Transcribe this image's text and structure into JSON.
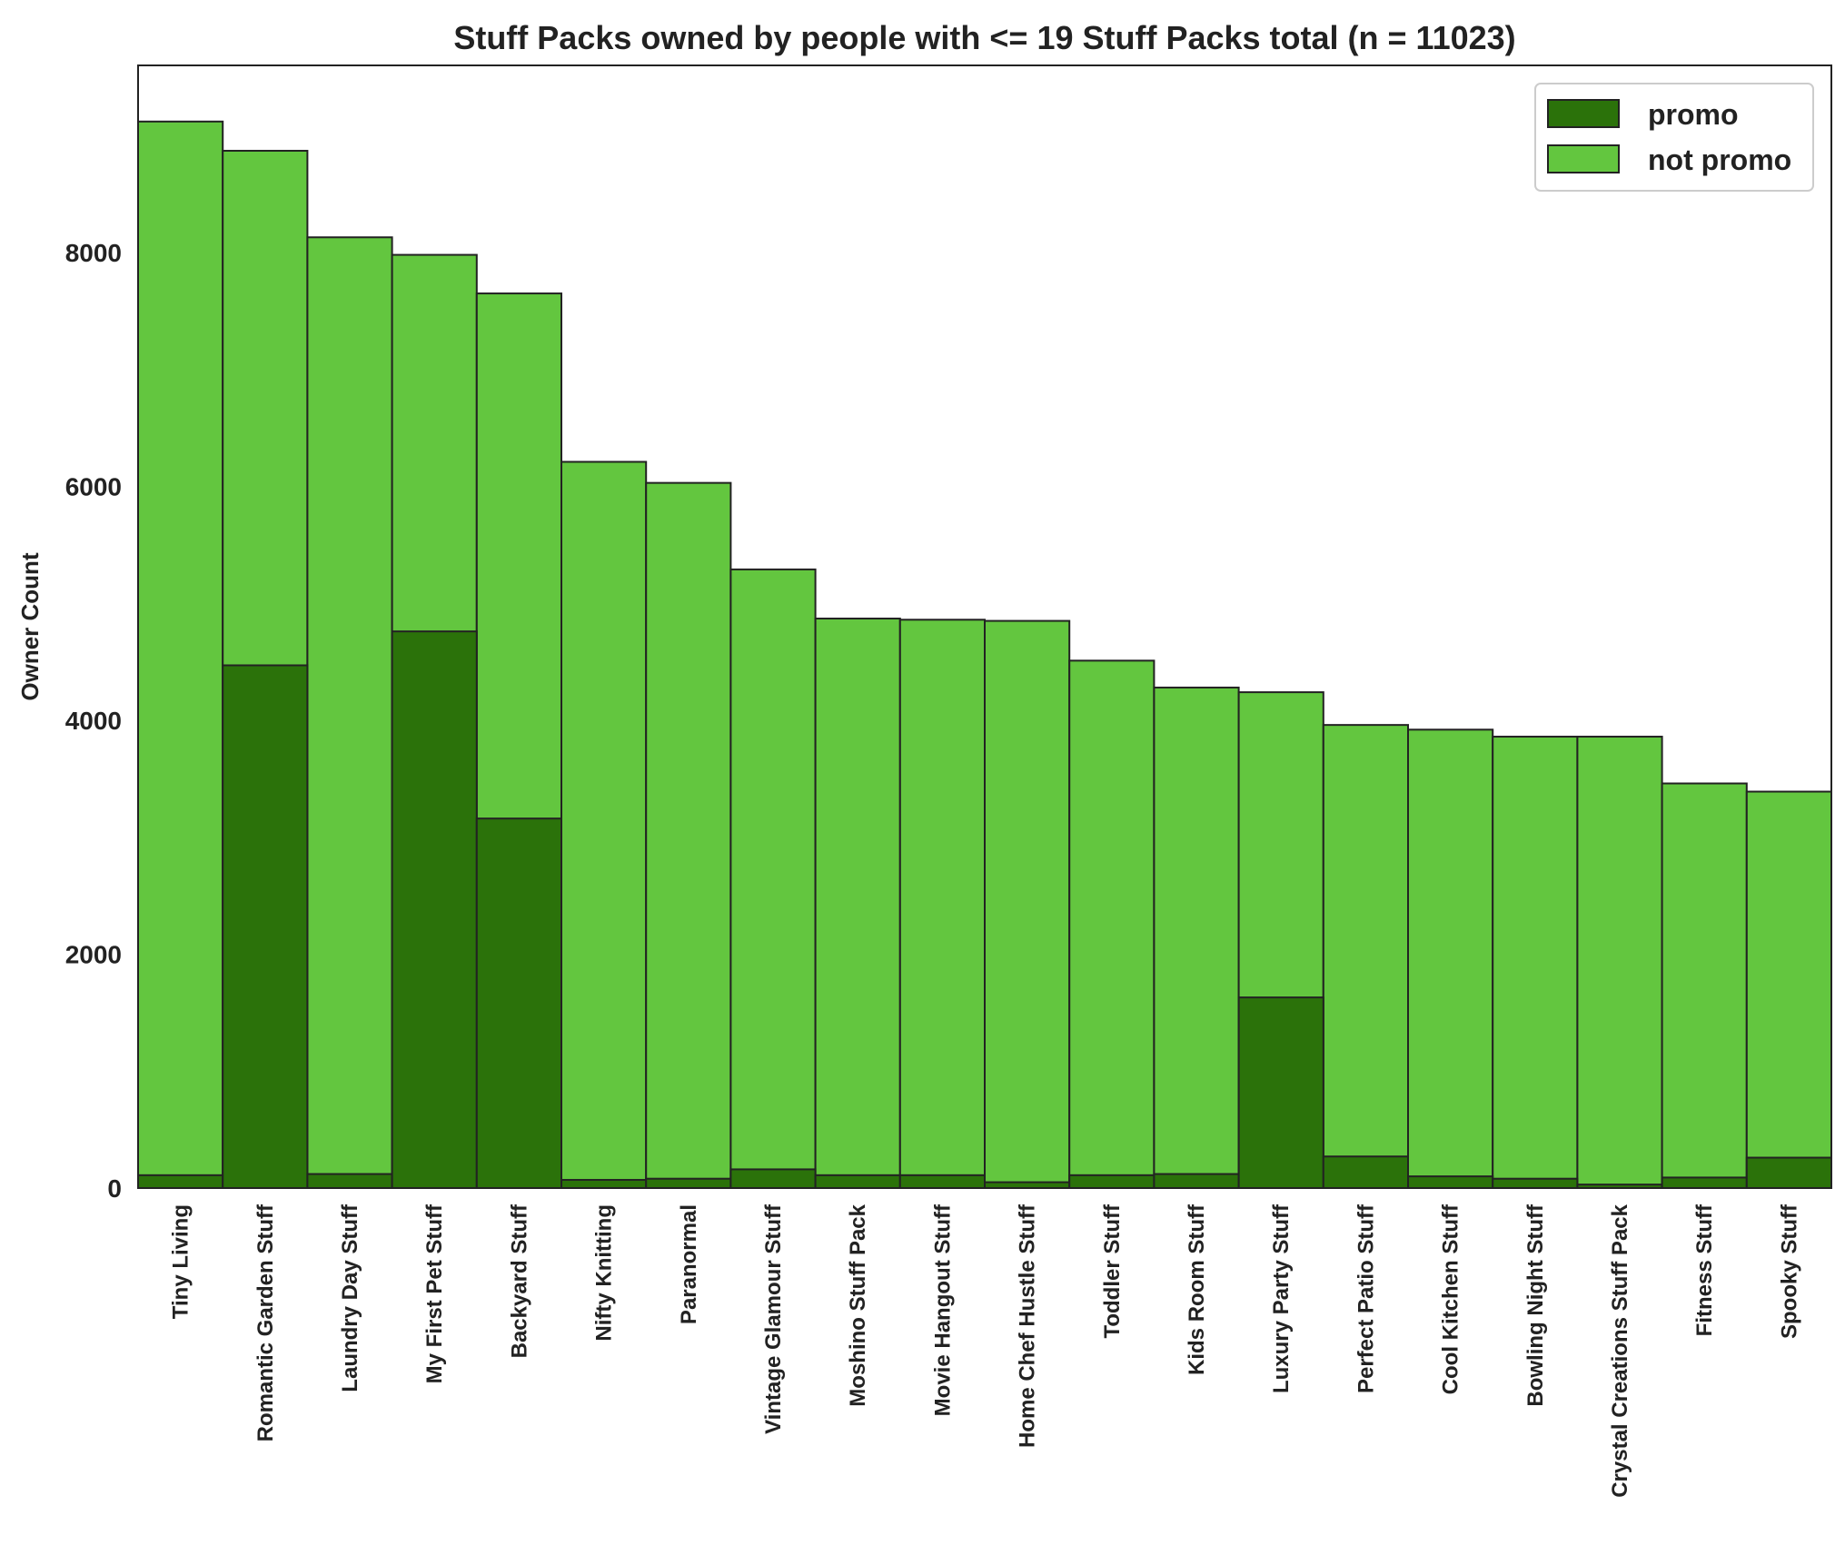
{
  "chart_data": {
    "type": "bar",
    "title": "Stuff Packs owned by people with <= 19 Stuff Packs total (n = 11023)",
    "xlabel": "",
    "ylabel": "Owner Count",
    "ylim": [
      0,
      9600
    ],
    "yticks": [
      0,
      2000,
      4000,
      6000,
      8000
    ],
    "grid": false,
    "legend_position": "top-right",
    "categories": [
      "Tiny Living",
      "Romantic Garden Stuff",
      "Laundry Day Stuff",
      "My First Pet Stuff",
      "Backyard Stuff",
      "Nifty Knitting",
      "Paranormal",
      "Vintage Glamour Stuff",
      "Moshino Stuff Pack",
      "Movie Hangout Stuff",
      "Home Chef Hustle Stuff",
      "Toddler Stuff",
      "Kids Room Stuff",
      "Luxury Party Stuff",
      "Perfect Patio Stuff",
      "Cool Kitchen Stuff",
      "Bowling Night Stuff",
      "Crystal Creations Stuff Pack",
      "Fitness Stuff",
      "Spooky Stuff"
    ],
    "series": [
      {
        "name": "promo",
        "color": "#2b720a",
        "values": [
          110,
          4470,
          120,
          4760,
          3160,
          70,
          80,
          160,
          110,
          110,
          50,
          110,
          120,
          1630,
          270,
          100,
          80,
          30,
          90,
          260
        ]
      },
      {
        "name": "not promo",
        "color": "#63c63f",
        "values": [
          9120,
          8870,
          8130,
          7980,
          7650,
          6210,
          6030,
          5290,
          4870,
          4860,
          4850,
          4510,
          4280,
          4240,
          3960,
          3920,
          3860,
          3860,
          3460,
          3390
        ]
      }
    ]
  }
}
